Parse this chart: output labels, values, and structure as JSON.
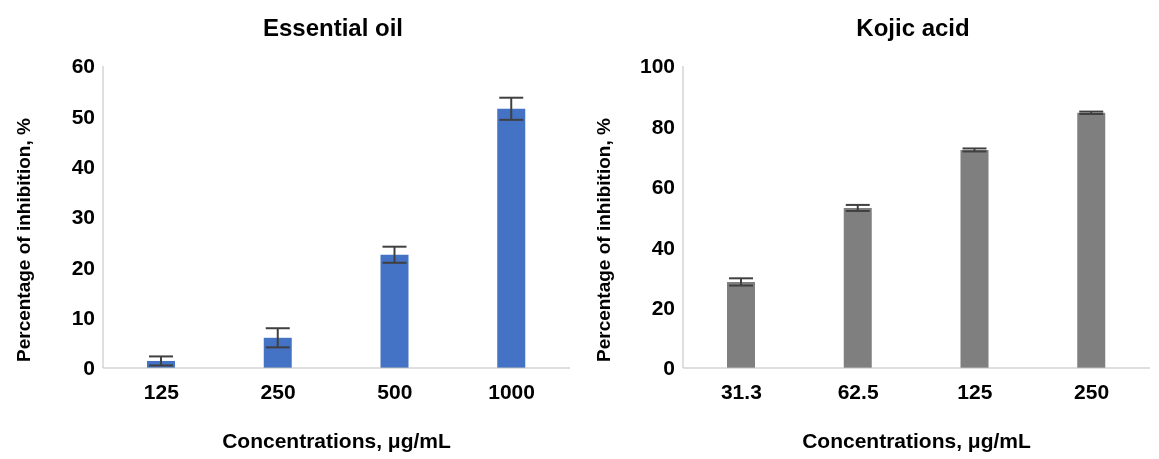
{
  "chart_data": [
    {
      "type": "bar",
      "title": "Essential oil",
      "xlabel": "Concentrations, μg/mL",
      "ylabel": "Percentage of inhibition, %",
      "categories": [
        "125",
        "250",
        "500",
        "1000"
      ],
      "values": [
        1.4,
        6.0,
        22.5,
        51.5
      ],
      "errors": [
        0.9,
        1.9,
        1.6,
        2.2
      ],
      "color": "#4472c4",
      "ylim": [
        0,
        60
      ],
      "yticks": [
        0,
        10,
        20,
        30,
        40,
        50,
        60
      ],
      "grid": false,
      "legend": false
    },
    {
      "type": "bar",
      "title": "Kojic acid",
      "xlabel": "Concentrations, μg/mL",
      "ylabel": "Percentage of inhibition, %",
      "categories": [
        "31.3",
        "62.5",
        "125",
        "250"
      ],
      "values": [
        28.5,
        53,
        72.2,
        84.5
      ],
      "errors": [
        1.2,
        1.0,
        0.5,
        0.4
      ],
      "color": "#7f7f7f",
      "ylim": [
        0,
        100
      ],
      "yticks": [
        0,
        20,
        40,
        60,
        80,
        100
      ],
      "grid": false,
      "legend": false
    }
  ]
}
